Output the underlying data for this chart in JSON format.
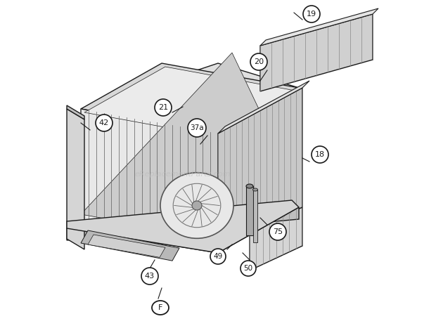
{
  "bg_color": "#ffffff",
  "line_color": "#1a1a1a",
  "label_color": "#1a1a1a",
  "watermark_color": "#bbbbbb",
  "watermark_text": "eReplacementParts.com",
  "fig_width": 6.2,
  "fig_height": 4.74,
  "dpi": 100,
  "gray_fill": "#c8c8c8",
  "light_gray": "#e0e0e0",
  "mid_gray": "#b0b0b0",
  "dark_gray": "#888888",
  "panel_gray": "#d0d0d0"
}
